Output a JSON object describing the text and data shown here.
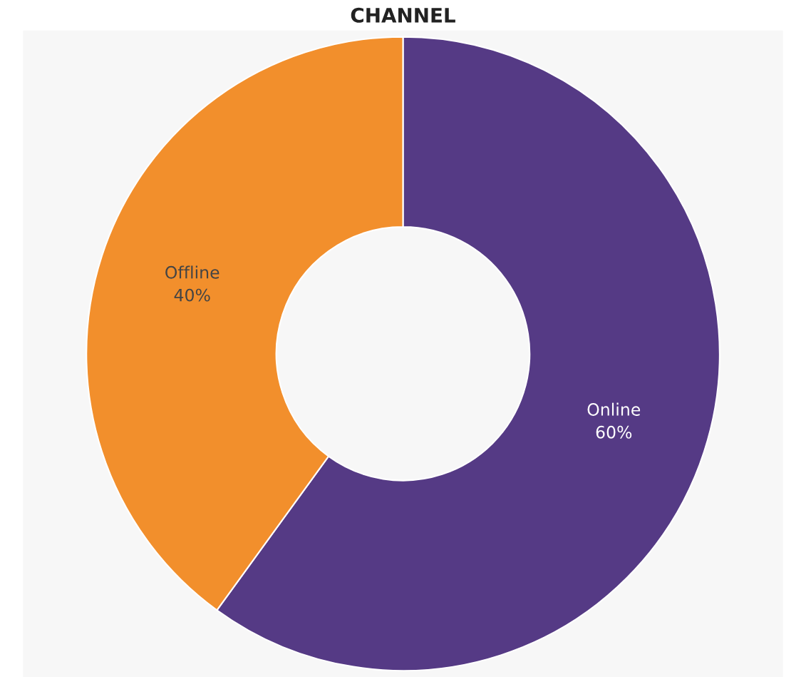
{
  "chart_data": {
    "type": "donut",
    "title": "CHANNEL",
    "categories": [
      "Online",
      "Offline"
    ],
    "values": [
      60,
      40
    ],
    "value_labels": [
      "60%",
      "40%"
    ],
    "colors": [
      "#553a85",
      "#f28f2c"
    ],
    "legend": false
  }
}
